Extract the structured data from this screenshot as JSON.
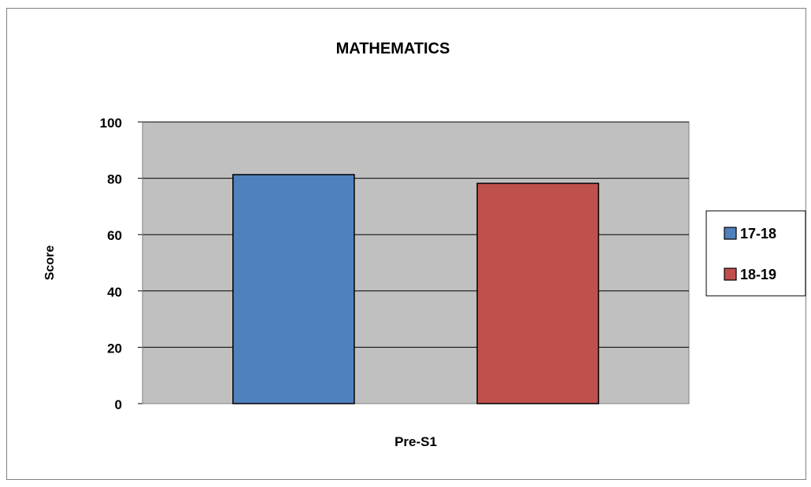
{
  "chart_data": {
    "type": "bar",
    "title": "MATHEMATICS",
    "xlabel": "",
    "ylabel": "Score",
    "categories": [
      "Pre-S1"
    ],
    "series": [
      {
        "name": "17-18",
        "values": [
          81.3
        ],
        "color": "#4F81BD"
      },
      {
        "name": "18-19",
        "values": [
          78.2
        ],
        "color": "#C0504D"
      }
    ],
    "ylim": [
      0,
      100
    ],
    "yticks": [
      0,
      20,
      40,
      60,
      80,
      100
    ],
    "grid": true,
    "legend_position": "right",
    "plot_background": "#C0C0C0"
  }
}
